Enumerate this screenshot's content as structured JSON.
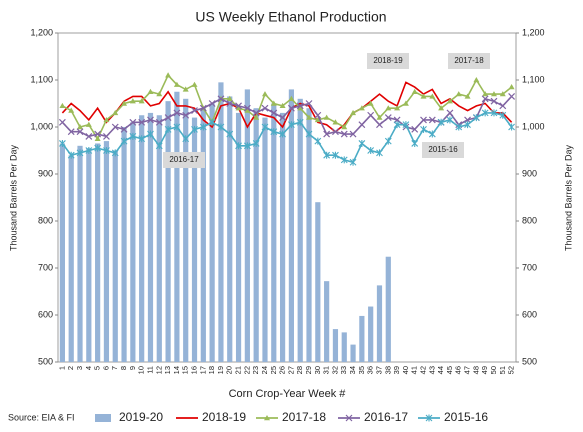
{
  "chart_data": {
    "type": "bar",
    "title": "US Weekly Ethanol Production",
    "x_label": "Corn Crop-Year Week #",
    "y_label": "Thousand Barrels Per Day",
    "y2_label": "Thousand Barrels Per Day",
    "source": "Source: EIA & FI",
    "annotations": [
      "2018-19",
      "2017-18",
      "2016-17",
      "2015-16"
    ],
    "categories": [
      "1",
      "2",
      "3",
      "4",
      "5",
      "6",
      "7",
      "8",
      "9",
      "10",
      "11",
      "12",
      "13",
      "14",
      "15",
      "16",
      "17",
      "18",
      "19",
      "20",
      "21",
      "22",
      "23",
      "24",
      "25",
      "26",
      "27",
      "28",
      "29",
      "30",
      "31",
      "32",
      "33",
      "34",
      "35",
      "36",
      "37",
      "38",
      "39",
      "40",
      "41",
      "42",
      "43",
      "44",
      "45",
      "46",
      "47",
      "48",
      "49",
      "50",
      "51",
      "52"
    ],
    "ylim": [
      500,
      1200
    ],
    "yticks": [
      500,
      600,
      700,
      800,
      900,
      {
        "value": 1000,
        "label": "1,000"
      },
      {
        "value": 1100,
        "label": "1,100"
      },
      {
        "value": 1200,
        "label": "1,200"
      }
    ],
    "y2lim": [
      500,
      1200
    ],
    "y2ticks": [
      500,
      600,
      700,
      800,
      900,
      {
        "value": 1000,
        "label": "1,000"
      },
      {
        "value": 1100,
        "label": "1,100"
      },
      {
        "value": 1200,
        "label": "1,200"
      }
    ],
    "grid": false,
    "legend": "bottom",
    "series": [
      {
        "name": "2019-20",
        "type": "bar",
        "color": "#95b3d7",
        "values": [
          965,
          940,
          960,
          955,
          965,
          970,
          950,
          1000,
          1010,
          1025,
          1030,
          1025,
          1055,
          1075,
          1060,
          1020,
          1040,
          1050,
          1095,
          1065,
          1030,
          1080,
          1040,
          1020,
          1050,
          1030,
          1080,
          1060,
          1040,
          840,
          672,
          570,
          563,
          537,
          598,
          618,
          663,
          724,
          null,
          null,
          null,
          null,
          null,
          null,
          null,
          null,
          null,
          null,
          null,
          null,
          null,
          null
        ]
      },
      {
        "name": "2018-19",
        "type": "line",
        "marker": "none",
        "color": "#e00000",
        "values": [
          1030,
          1050,
          1035,
          1015,
          1040,
          1010,
          1030,
          1055,
          1065,
          1065,
          1045,
          1050,
          1075,
          1045,
          1045,
          1040,
          1015,
          1000,
          1045,
          1050,
          1040,
          1000,
          1030,
          1025,
          1020,
          1000,
          1040,
          1050,
          1045,
          1010,
          1005,
          990,
          1005,
          1030,
          1040,
          1055,
          1070,
          1055,
          1045,
          1095,
          1085,
          1070,
          1080,
          1050,
          1060,
          1045,
          1035,
          1045,
          1050,
          1030,
          1030,
          1010
        ]
      },
      {
        "name": "2017-18",
        "type": "line",
        "marker": "triangle",
        "color": "#9bbb59",
        "values": [
          1045,
          1035,
          1000,
          1005,
          975,
          1015,
          1030,
          1050,
          1055,
          1055,
          1075,
          1070,
          1110,
          1090,
          1080,
          1090,
          1040,
          1010,
          1060,
          1060,
          1040,
          1035,
          1020,
          1070,
          1050,
          1045,
          1060,
          1040,
          1020,
          1015,
          1020,
          1010,
          1000,
          1030,
          1040,
          1050,
          1020,
          1040,
          1040,
          1050,
          1075,
          1065,
          1065,
          1040,
          1055,
          1070,
          1065,
          1100,
          1070,
          1070,
          1070,
          1085
        ]
      },
      {
        "name": "2016-17",
        "type": "line",
        "marker": "x",
        "color": "#8064a2",
        "values": [
          1010,
          990,
          990,
          980,
          985,
          980,
          1000,
          995,
          1010,
          1010,
          1015,
          1010,
          1020,
          1030,
          1025,
          1035,
          1040,
          1050,
          1060,
          1050,
          1045,
          1040,
          1030,
          1040,
          1030,
          1020,
          1040,
          1045,
          1050,
          1025,
          985,
          990,
          985,
          985,
          1005,
          1025,
          1005,
          1020,
          1015,
          1000,
          995,
          1015,
          1015,
          1010,
          1030,
          1005,
          1015,
          1020,
          1060,
          1055,
          1045,
          1065
        ]
      },
      {
        "name": "2015-16",
        "type": "line",
        "marker": "star",
        "color": "#4bacc6",
        "values": [
          965,
          940,
          945,
          950,
          955,
          950,
          945,
          970,
          980,
          975,
          985,
          960,
          995,
          1000,
          975,
          995,
          1000,
          1010,
          1000,
          985,
          960,
          960,
          965,
          1000,
          990,
          985,
          1005,
          1010,
          985,
          970,
          940,
          940,
          930,
          925,
          965,
          950,
          945,
          970,
          1005,
          1005,
          965,
          995,
          985,
          1010,
          1015,
          1000,
          1005,
          1020,
          1030,
          1030,
          1025,
          1000
        ]
      }
    ]
  }
}
